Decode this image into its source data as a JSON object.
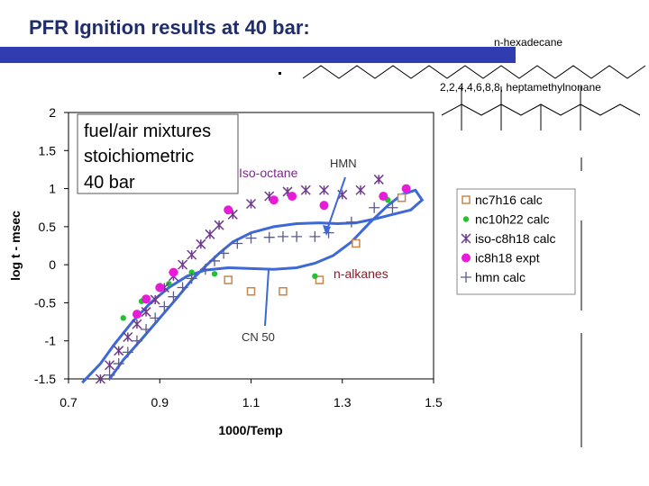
{
  "slide": {
    "title": "PFR Ignition results at 40 bar:",
    "molecule1_label": "n-hexadecane",
    "molecule2_label": "2,2,4,4,6,8,8, heptamethylnonane",
    "colors": {
      "title": "#1f2d6b",
      "bar": "#2f3db0"
    }
  },
  "chart_data": {
    "type": "scatter",
    "xlabel": "1000/Temp",
    "ylabel": "log t - msec",
    "xlim": [
      0.7,
      1.5
    ],
    "ylim": [
      -1.5,
      2
    ],
    "x_ticks": [
      "0.7",
      "0.9",
      "1.1",
      "1.3",
      "1.5"
    ],
    "y_ticks": [
      "2",
      "1.5",
      "1",
      "0.5",
      "0",
      "-0.5",
      "-1",
      "-1.5"
    ],
    "legend_position": "right",
    "annotations": {
      "box_lines": [
        "fuel/air mixtures",
        "stoichiometric",
        "40 bar"
      ],
      "iso_octane": "Iso-octane",
      "hmn": "HMN",
      "n_alkanes": "n-alkanes",
      "cn50": "CN 50"
    },
    "series": [
      {
        "name": "nc7h16  calc",
        "marker": "open-square",
        "color": "#c8864a",
        "points": [
          [
            1.05,
            -0.2
          ],
          [
            1.1,
            -0.35
          ],
          [
            1.17,
            -0.35
          ],
          [
            1.25,
            -0.2
          ],
          [
            1.33,
            0.28
          ],
          [
            1.43,
            0.88
          ]
        ]
      },
      {
        "name": "nc10h22 calc",
        "marker": "dot",
        "color": "#22c22e",
        "points": [
          [
            0.82,
            -0.7
          ],
          [
            0.86,
            -0.48
          ],
          [
            0.92,
            -0.25
          ],
          [
            0.97,
            -0.1
          ],
          [
            1.02,
            -0.12
          ],
          [
            1.24,
            -0.15
          ],
          [
            1.4,
            0.85
          ]
        ]
      },
      {
        "name": "iso-c8h18 calc",
        "marker": "asterisk",
        "color": "#6e3a8a",
        "points": [
          [
            0.77,
            -1.5
          ],
          [
            0.79,
            -1.32
          ],
          [
            0.81,
            -1.13
          ],
          [
            0.83,
            -0.95
          ],
          [
            0.85,
            -0.78
          ],
          [
            0.87,
            -0.62
          ],
          [
            0.89,
            -0.46
          ],
          [
            0.91,
            -0.3
          ],
          [
            0.93,
            -0.15
          ],
          [
            0.95,
            0.0
          ],
          [
            0.97,
            0.13
          ],
          [
            0.99,
            0.27
          ],
          [
            1.01,
            0.4
          ],
          [
            1.03,
            0.52
          ],
          [
            1.06,
            0.66
          ],
          [
            1.1,
            0.8
          ],
          [
            1.14,
            0.9
          ],
          [
            1.18,
            0.96
          ],
          [
            1.22,
            0.98
          ],
          [
            1.26,
            0.98
          ],
          [
            1.3,
            0.92
          ],
          [
            1.34,
            0.98
          ],
          [
            1.38,
            1.12
          ]
        ]
      },
      {
        "name": "ic8h18 expt",
        "marker": "big-dot",
        "color": "#e81cd8",
        "points": [
          [
            0.85,
            -0.65
          ],
          [
            0.87,
            -0.45
          ],
          [
            0.9,
            -0.3
          ],
          [
            0.93,
            -0.1
          ],
          [
            1.05,
            0.72
          ],
          [
            1.15,
            0.85
          ],
          [
            1.19,
            0.9
          ],
          [
            1.26,
            0.78
          ],
          [
            1.39,
            0.9
          ],
          [
            1.44,
            1.0
          ]
        ]
      },
      {
        "name": "hmn  calc",
        "marker": "plus",
        "color": "#5a5a8a",
        "points": [
          [
            0.79,
            -1.45
          ],
          [
            0.81,
            -1.3
          ],
          [
            0.83,
            -1.15
          ],
          [
            0.85,
            -1.0
          ],
          [
            0.87,
            -0.85
          ],
          [
            0.89,
            -0.7
          ],
          [
            0.91,
            -0.55
          ],
          [
            0.93,
            -0.42
          ],
          [
            0.95,
            -0.3
          ],
          [
            0.97,
            -0.18
          ],
          [
            1.0,
            -0.06
          ],
          [
            1.02,
            0.05
          ],
          [
            1.04,
            0.15
          ],
          [
            1.07,
            0.28
          ],
          [
            1.1,
            0.35
          ],
          [
            1.14,
            0.36
          ],
          [
            1.17,
            0.37
          ],
          [
            1.2,
            0.37
          ],
          [
            1.24,
            0.37
          ],
          [
            1.27,
            0.42
          ],
          [
            1.32,
            0.56
          ],
          [
            1.37,
            0.75
          ],
          [
            1.41,
            0.75
          ]
        ]
      }
    ],
    "curve": {
      "color": "#3c68d8",
      "points": [
        [
          0.73,
          -1.55
        ],
        [
          0.77,
          -1.3
        ],
        [
          0.8,
          -1.05
        ],
        [
          0.84,
          -0.75
        ],
        [
          0.88,
          -0.5
        ],
        [
          0.92,
          -0.3
        ],
        [
          0.96,
          -0.15
        ],
        [
          1.0,
          -0.07
        ],
        [
          1.05,
          -0.04
        ],
        [
          1.1,
          -0.05
        ],
        [
          1.15,
          -0.06
        ],
        [
          1.2,
          -0.04
        ],
        [
          1.24,
          0.02
        ],
        [
          1.28,
          0.12
        ],
        [
          1.32,
          0.3
        ],
        [
          1.36,
          0.55
        ],
        [
          1.4,
          0.78
        ],
        [
          1.43,
          0.92
        ],
        [
          1.46,
          0.98
        ],
        [
          1.475,
          0.85
        ],
        [
          1.45,
          0.72
        ],
        [
          1.41,
          0.66
        ],
        [
          1.37,
          0.6
        ],
        [
          1.33,
          0.55
        ],
        [
          1.29,
          0.54
        ],
        [
          1.25,
          0.55
        ],
        [
          1.2,
          0.54
        ],
        [
          1.15,
          0.5
        ],
        [
          1.1,
          0.42
        ],
        [
          1.06,
          0.3
        ],
        [
          1.03,
          0.15
        ],
        [
          1.0,
          -0.02
        ],
        [
          0.97,
          -0.2
        ],
        [
          0.94,
          -0.42
        ],
        [
          0.9,
          -0.7
        ],
        [
          0.86,
          -0.98
        ],
        [
          0.82,
          -1.25
        ],
        [
          0.79,
          -1.5
        ]
      ]
    }
  }
}
